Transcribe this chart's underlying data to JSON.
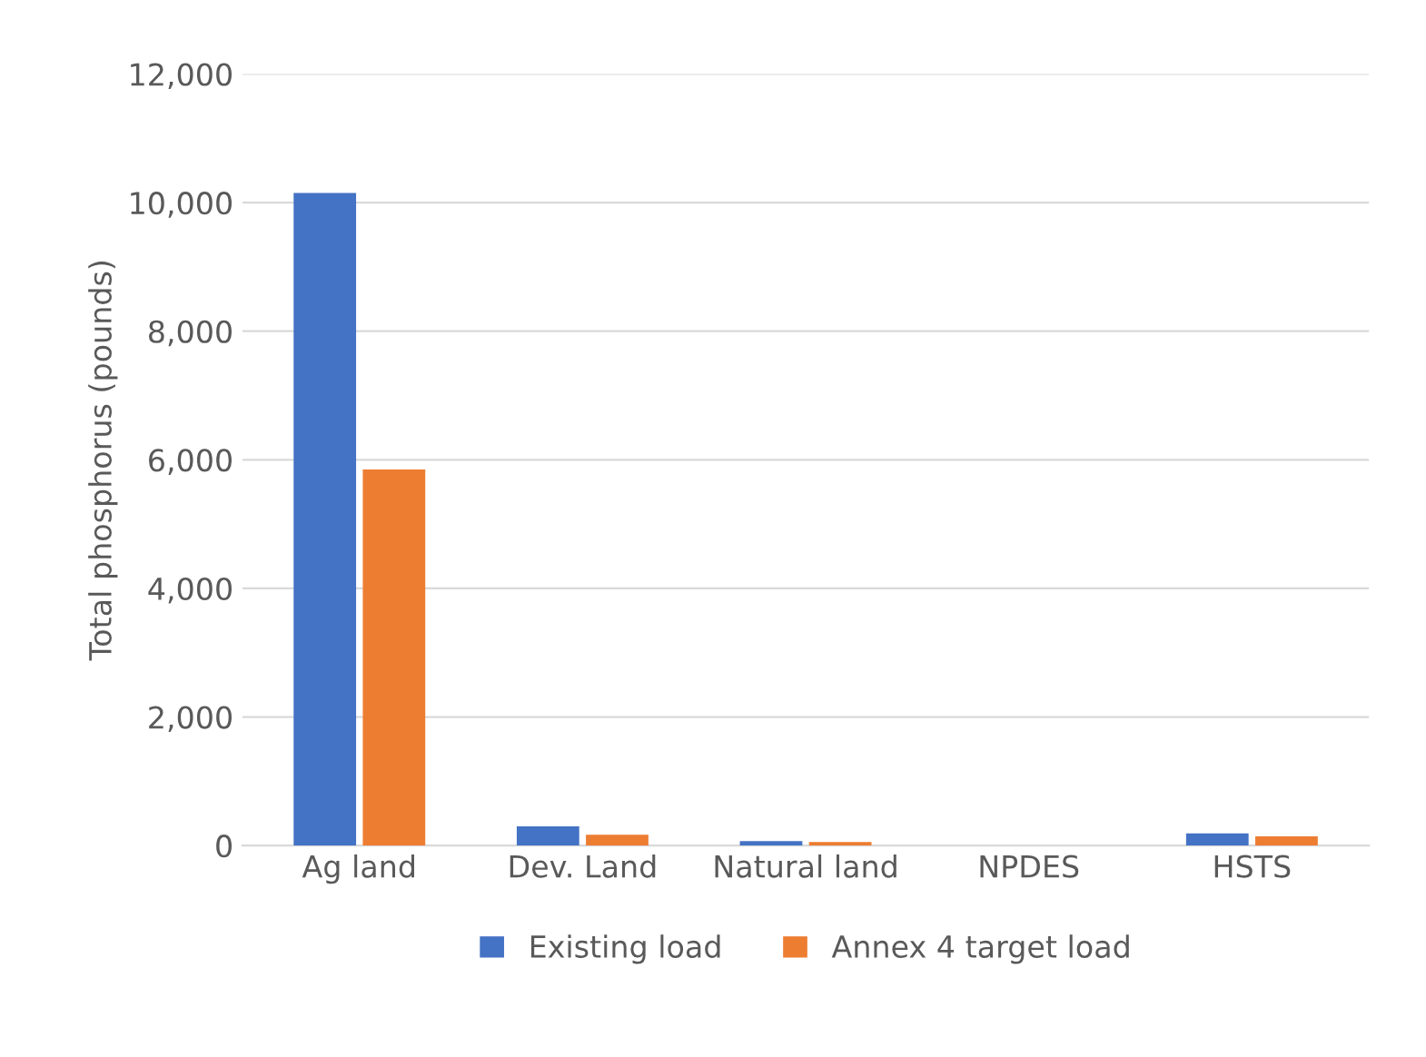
{
  "chart_data": {
    "type": "bar",
    "ylabel": "Total phosphorus (pounds)",
    "categories": [
      "Ag land",
      "Dev. Land",
      "Natural land",
      "NPDES",
      "HSTS"
    ],
    "series": [
      {
        "name": "Existing load",
        "color": "#4472c4",
        "values": [
          10150,
          300,
          70,
          0,
          190
        ]
      },
      {
        "name": "Annex 4 target load",
        "color": "#ed7d31",
        "values": [
          5850,
          170,
          55,
          0,
          145
        ]
      }
    ],
    "ylim": [
      0,
      12000
    ],
    "yticks": [
      {
        "value": 0,
        "label": "0"
      },
      {
        "value": 2000,
        "label": "2,000"
      },
      {
        "value": 4000,
        "label": "4,000"
      },
      {
        "value": 6000,
        "label": "6,000"
      },
      {
        "value": 8000,
        "label": "8,000"
      },
      {
        "value": 10000,
        "label": "10,000"
      },
      {
        "value": 12000,
        "label": "12,000"
      }
    ],
    "grid": "y",
    "legend": "bottom"
  }
}
